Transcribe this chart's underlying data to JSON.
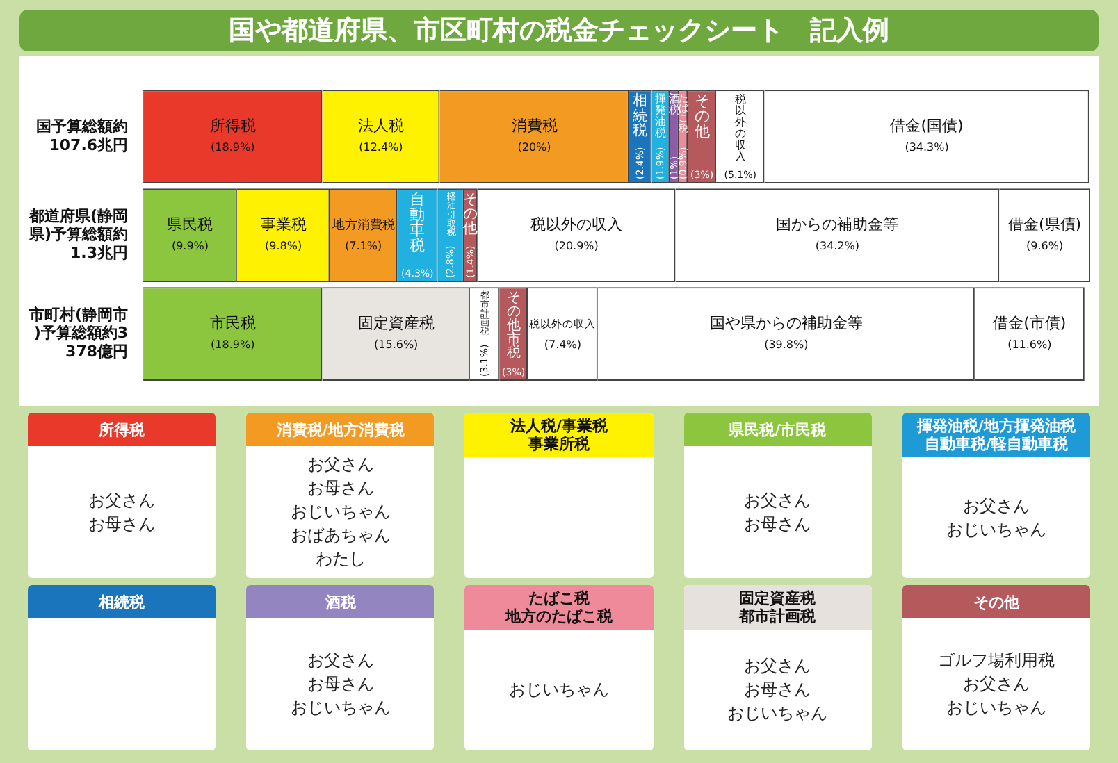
{
  "chart_data": [
    {
      "type": "bar",
      "orientation": "horizontal",
      "stacked": true,
      "title": "国や都道府県、市区町村の税金チェックシート　記入例",
      "legend": false,
      "categories": [
        "国予算総額約107.6兆円",
        "都道府県(静岡県)予算総額約1.3兆円",
        "市町村(静岡市)予算総額約3378億円"
      ],
      "series": [
        {
          "name": "所得税",
          "color": "#e8392b",
          "values": [
            18.9,
            null,
            null
          ],
          "value_labels": [
            "(18.9%)",
            null,
            null
          ]
        },
        {
          "name": "法人税",
          "color": "#fff200",
          "values": [
            12.4,
            null,
            null
          ],
          "value_labels": [
            "(12.4%)",
            null,
            null
          ]
        },
        {
          "name": "消費税",
          "color": "#f39a22",
          "values": [
            20,
            null,
            null
          ],
          "value_labels": [
            "(20%)",
            null,
            null
          ]
        },
        {
          "name": "相続税",
          "color": "#1b75bc",
          "values": [
            2.4,
            null,
            null
          ],
          "value_labels": [
            "(2.4%)",
            null,
            null
          ]
        },
        {
          "name": "揮発油税",
          "color": "#20b1e0",
          "values": [
            1.9,
            null,
            null
          ],
          "value_labels": [
            "(1.9%)",
            null,
            null
          ]
        },
        {
          "name": "酒税",
          "color": "#8e5ba6",
          "values": [
            1,
            null,
            null
          ],
          "value_labels": [
            "(1%)",
            null,
            null
          ]
        },
        {
          "name": "たばこ税",
          "color": "#ef8a9a",
          "values": [
            0.9,
            null,
            null
          ],
          "value_labels": [
            "(0.9%)",
            null,
            null
          ]
        },
        {
          "name": "その他",
          "color": "#b5595d",
          "values": [
            3,
            null,
            null
          ],
          "value_labels": [
            "(3%)",
            null,
            null
          ]
        },
        {
          "name": "税以外の収入",
          "color": "#ffffff",
          "values": [
            5.1,
            null,
            null
          ],
          "value_labels": [
            "(5.1%)",
            null,
            null
          ]
        },
        {
          "name": "借金(国債)",
          "color": "#ffffff",
          "values": [
            34.3,
            null,
            null
          ],
          "value_labels": [
            "(34.3%)",
            null,
            null
          ]
        },
        {
          "name": "県民税",
          "color": "#8cc63f",
          "values": [
            null,
            9.9,
            null
          ],
          "value_labels": [
            null,
            "(9.9%)",
            null
          ]
        },
        {
          "name": "事業税",
          "color": "#fff200",
          "values": [
            null,
            9.8,
            null
          ],
          "value_labels": [
            null,
            "(9.8%)",
            null
          ]
        },
        {
          "name": "地方消費税",
          "color": "#f39a22",
          "values": [
            null,
            7.1,
            null
          ],
          "value_labels": [
            null,
            "(7.1%)",
            null
          ]
        },
        {
          "name": "自動車税",
          "color": "#20b1e0",
          "values": [
            null,
            4.3,
            null
          ],
          "value_labels": [
            null,
            "(4.3%)",
            null
          ]
        },
        {
          "name": "軽油引取税",
          "color": "#20b1e0",
          "values": [
            null,
            2.8,
            null
          ],
          "value_labels": [
            null,
            "(2.8%)",
            null
          ]
        },
        {
          "name": "その他",
          "color": "#b5595d",
          "values": [
            null,
            1.4,
            null
          ],
          "value_labels": [
            null,
            "(1.4%)",
            null
          ]
        },
        {
          "name": "税以外の収入",
          "color": "#ffffff",
          "values": [
            null,
            20.9,
            null
          ],
          "value_labels": [
            null,
            "(20.9%)",
            null
          ]
        },
        {
          "name": "国からの補助金等",
          "color": "#ffffff",
          "values": [
            null,
            34.2,
            null
          ],
          "value_labels": [
            null,
            "(34.2%)",
            null
          ]
        },
        {
          "name": "借金(県債)",
          "color": "#ffffff",
          "values": [
            null,
            9.6,
            null
          ],
          "value_labels": [
            null,
            "(9.6%)",
            null
          ]
        },
        {
          "name": "市民税",
          "color": "#8cc63f",
          "values": [
            null,
            null,
            18.9
          ],
          "value_labels": [
            null,
            null,
            "(18.9%)"
          ]
        },
        {
          "name": "固定資産税",
          "color": "#e8e4e0",
          "values": [
            null,
            null,
            15.6
          ],
          "value_labels": [
            null,
            null,
            "(15.6%)"
          ]
        },
        {
          "name": "都市計画税",
          "color": "#ffffff",
          "values": [
            null,
            null,
            3.1
          ],
          "value_labels": [
            null,
            null,
            "(3.1%)"
          ]
        },
        {
          "name": "その他市税",
          "color": "#b5595d",
          "values": [
            null,
            null,
            3
          ],
          "value_labels": [
            null,
            null,
            "(3%)"
          ]
        },
        {
          "name": "税以外の収入",
          "color": "#ffffff",
          "values": [
            null,
            null,
            7.4
          ],
          "value_labels": [
            null,
            null,
            "(7.4%)"
          ]
        },
        {
          "name": "国や県からの補助金等",
          "color": "#ffffff",
          "values": [
            null,
            null,
            39.8
          ],
          "value_labels": [
            null,
            null,
            "(39.8%)"
          ]
        },
        {
          "name": "借金(市債)",
          "color": "#ffffff",
          "values": [
            null,
            null,
            11.6
          ],
          "value_labels": [
            null,
            null,
            "(11.6%)"
          ]
        }
      ]
    },
    {
      "type": "other",
      "title": "所得税",
      "color": "#e8392b",
      "annotations": [
        "お父さん",
        "お母さん"
      ]
    },
    {
      "type": "other",
      "title": "消費税/地方消費税",
      "color": "#f39a22",
      "annotations": [
        "お父さん",
        "お母さん",
        "おじいちゃん",
        "おばあちゃん",
        "わたし"
      ]
    },
    {
      "type": "other",
      "title": "法人税/事業税",
      "subtitle": "事業所税",
      "color": "#fff200"
    },
    {
      "type": "other",
      "title": "県民税/市民税",
      "color": "#8cc63f",
      "annotations": [
        "お父さん",
        "お母さん"
      ]
    },
    {
      "type": "other",
      "title": "揮発油税/地方揮発油税",
      "subtitle": "自動車税/軽自動車税",
      "color": "#1e9ad6",
      "annotations": [
        "お父さん",
        "おじいちゃん"
      ]
    },
    {
      "type": "other",
      "title": "相続税",
      "color": "#1b75bc"
    },
    {
      "type": "other",
      "title": "酒税",
      "color": "#9386c0",
      "annotations": [
        "お父さん",
        "お母さん",
        "おじいちゃん"
      ]
    },
    {
      "type": "other",
      "title": "たばこ税",
      "subtitle": "地方のたばこ税",
      "color": "#ef8a9a",
      "annotations": [
        "おじいちゃん"
      ]
    },
    {
      "type": "other",
      "title": "固定資産税",
      "subtitle": "都市計画税",
      "color": "#e6e1dc",
      "annotations": [
        "お父さん",
        "お母さん",
        "おじいちゃん"
      ]
    },
    {
      "type": "other",
      "title": "その他",
      "color": "#b5595d",
      "annotations": [
        "ゴルフ場利用税",
        "お父さん",
        "おじいちゃん"
      ]
    }
  ]
}
